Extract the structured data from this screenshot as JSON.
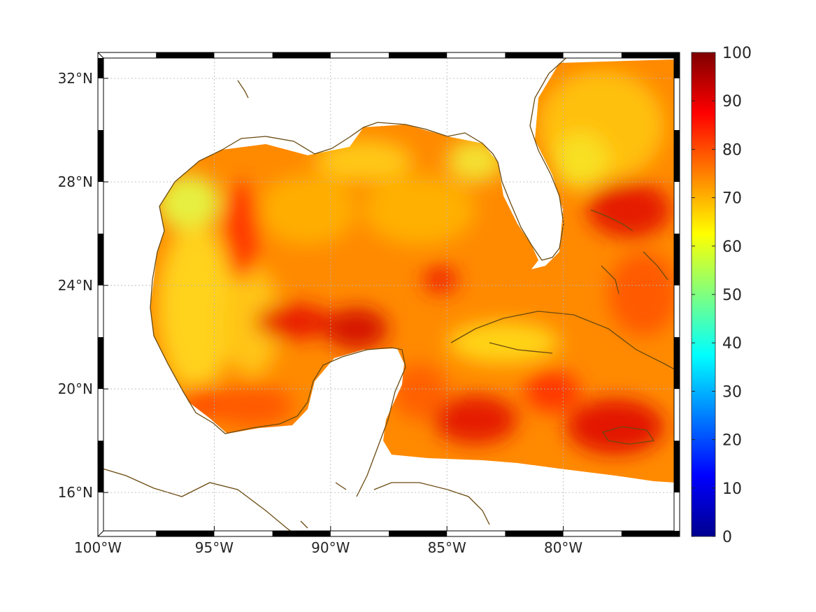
{
  "map": {
    "type": "heatmap",
    "region": "Gulf of Mexico and Caribbean",
    "lon_range": [
      -100,
      -75
    ],
    "lat_range": [
      14.3,
      33
    ],
    "lat_ticks": [
      {
        "value": 32,
        "label": "32°N"
      },
      {
        "value": 28,
        "label": "28°N"
      },
      {
        "value": 24,
        "label": "24°N"
      },
      {
        "value": 20,
        "label": "20°N"
      },
      {
        "value": 16,
        "label": "16°N"
      }
    ],
    "lon_ticks": [
      {
        "value": -100,
        "label": "100°W"
      },
      {
        "value": -95,
        "label": "95°W"
      },
      {
        "value": -90,
        "label": "90°W"
      },
      {
        "value": -85,
        "label": "85°W"
      },
      {
        "value": -80,
        "label": "80°W"
      }
    ],
    "grid": true,
    "coastline_color": "#6b4a10"
  },
  "chart_data": {
    "type": "heatmap",
    "colormap": "jet",
    "value_range": [
      0,
      100
    ],
    "colorbar_ticks": [
      0,
      10,
      20,
      30,
      40,
      50,
      60,
      70,
      80,
      90,
      100
    ],
    "dominant_range": [
      60,
      90
    ]
  }
}
